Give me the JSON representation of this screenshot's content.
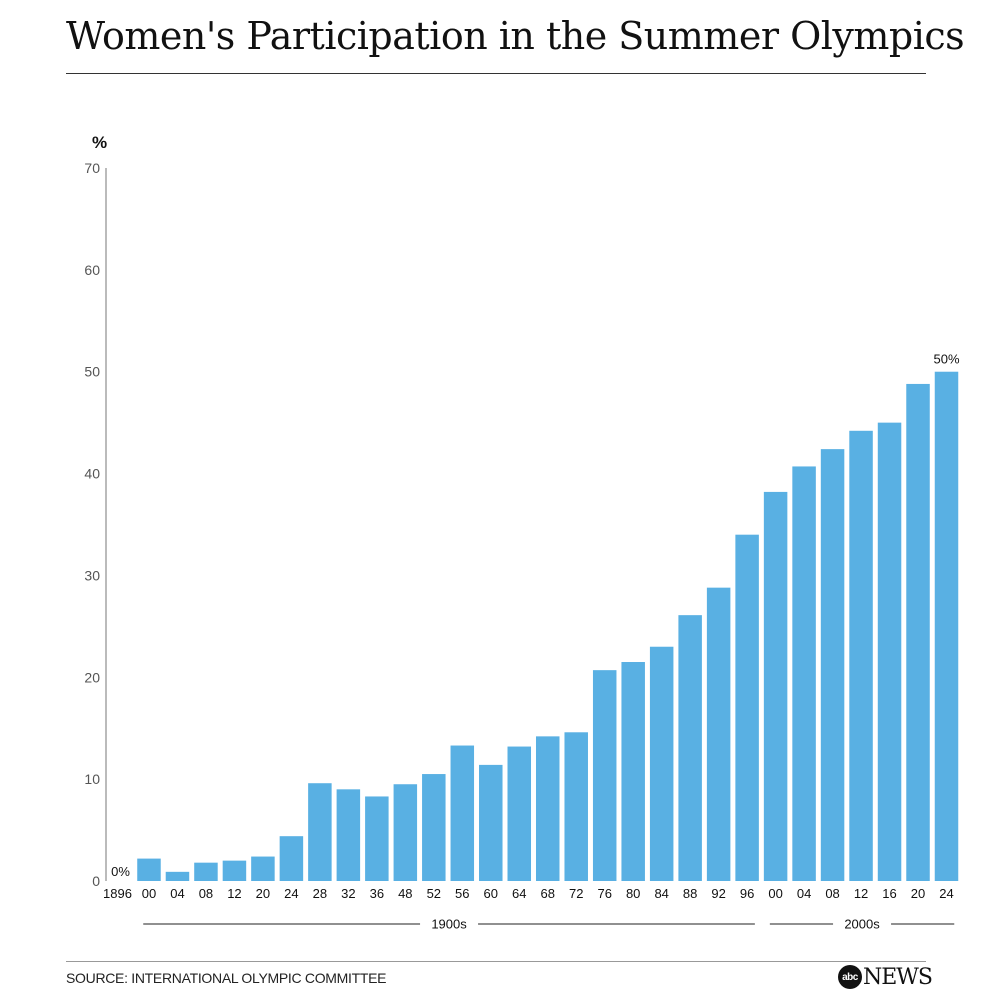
{
  "header": {
    "title": "Women's Participation in the Summer Olympics"
  },
  "footer": {
    "source": "SOURCE: INTERNATIONAL OLYMPIC COMMITTEE",
    "logo_circle": "abc",
    "logo_text": "NEWS"
  },
  "colors": {
    "bar": "#59b0e3",
    "axis_text": "#555555",
    "text_dark": "#111111"
  },
  "chart_data": {
    "type": "bar",
    "title": "Women's Participation in the Summer Olympics",
    "ylabel": "%",
    "ylim": [
      0,
      70
    ],
    "yticks": [
      0,
      10,
      20,
      30,
      40,
      50,
      60,
      70
    ],
    "grid": false,
    "categories": [
      "1896",
      "00",
      "04",
      "08",
      "12",
      "20",
      "24",
      "28",
      "32",
      "36",
      "48",
      "52",
      "56",
      "60",
      "64",
      "68",
      "72",
      "76",
      "80",
      "84",
      "88",
      "92",
      "96",
      "00",
      "04",
      "08",
      "12",
      "16",
      "20",
      "24"
    ],
    "values": [
      0,
      2.2,
      0.9,
      1.8,
      2.0,
      2.4,
      4.4,
      9.6,
      9.0,
      8.3,
      9.5,
      10.5,
      13.3,
      11.4,
      13.2,
      14.2,
      14.6,
      20.7,
      21.5,
      23.0,
      26.1,
      28.8,
      34.0,
      38.2,
      40.7,
      42.4,
      44.2,
      45.0,
      48.8,
      50.0
    ],
    "annotations": [
      {
        "index": 0,
        "text": "0%"
      },
      {
        "index": 29,
        "text": "50%"
      }
    ],
    "decade_groups": [
      {
        "label": "1900s",
        "from": 1,
        "to": 22
      },
      {
        "label": "2000s",
        "from": 23,
        "to": 29
      }
    ]
  }
}
